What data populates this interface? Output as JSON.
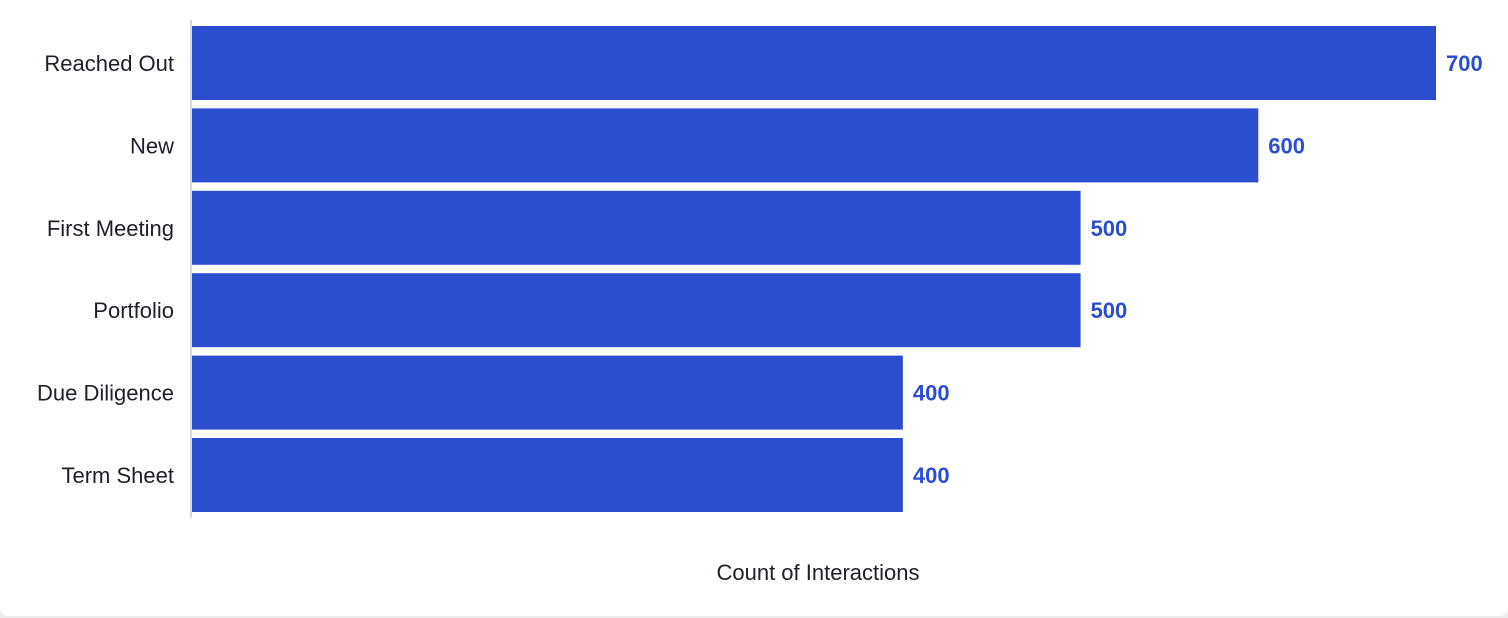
{
  "chart_data": {
    "type": "bar",
    "orientation": "horizontal",
    "categories": [
      "Reached Out",
      "New",
      "First Meeting",
      "Portfolio",
      "Due Diligence",
      "Term Sheet"
    ],
    "values": [
      700,
      600,
      500,
      500,
      400,
      400
    ],
    "data_labels": [
      "700",
      "600",
      "500",
      "500",
      "400",
      "400"
    ],
    "xlabel": "Count of Interactions",
    "ylabel": "",
    "xlim": [
      0,
      700
    ],
    "grid": false,
    "legend": "none",
    "colors": {
      "bar": "#2b4ecf",
      "value_label": "#2b4ecf",
      "axis_line": "#d4d6de"
    }
  }
}
